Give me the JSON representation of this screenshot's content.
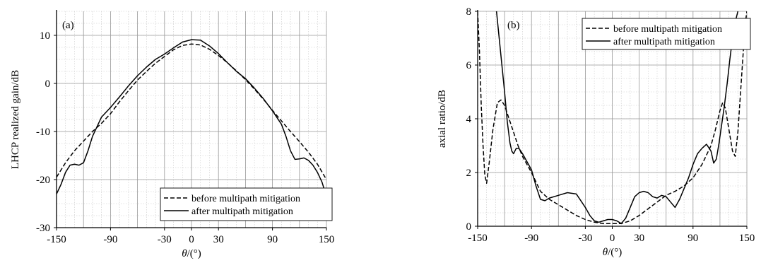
{
  "chart_data": [
    {
      "type": "line",
      "panel_label": "(a)",
      "xlabel_var": "θ",
      "xlabel_unit": "/(°)",
      "ylabel": "LHCP realized gain/dB",
      "xlim": [
        -150,
        150
      ],
      "ylim": [
        -30,
        15
      ],
      "xticks": [
        -150,
        -90,
        -30,
        0,
        30,
        90,
        150
      ],
      "yticks": [
        -30,
        -20,
        -10,
        0,
        10
      ],
      "grid": true,
      "legend_position": "bottom-right",
      "series": [
        {
          "name": "before multipath mitigation",
          "style": "dashed",
          "x": [
            -150,
            -140,
            -130,
            -120,
            -110,
            -100,
            -90,
            -80,
            -70,
            -60,
            -50,
            -40,
            -30,
            -20,
            -10,
            0,
            10,
            20,
            30,
            40,
            50,
            60,
            70,
            80,
            90,
            100,
            110,
            120,
            130,
            140,
            150
          ],
          "y": [
            -19.5,
            -16.5,
            -14.0,
            -12.0,
            -10.0,
            -8.3,
            -6.3,
            -3.8,
            -1.5,
            0.7,
            2.5,
            4.2,
            5.6,
            7.0,
            7.9,
            8.2,
            8.0,
            7.1,
            5.8,
            4.3,
            2.6,
            0.8,
            -1.2,
            -3.3,
            -5.6,
            -7.8,
            -10.0,
            -12.1,
            -14.3,
            -16.8,
            -20.0
          ]
        },
        {
          "name": "after multipath mitigation",
          "style": "solid",
          "x": [
            -150,
            -145,
            -140,
            -135,
            -130,
            -125,
            -120,
            -115,
            -110,
            -100,
            -90,
            -80,
            -70,
            -60,
            -50,
            -40,
            -30,
            -20,
            -10,
            0,
            10,
            20,
            30,
            40,
            50,
            60,
            70,
            80,
            90,
            100,
            105,
            110,
            115,
            120,
            125,
            130,
            135,
            140,
            145,
            150
          ],
          "y": [
            -23.0,
            -21.0,
            -18.5,
            -17.0,
            -16.8,
            -17.0,
            -16.5,
            -14.0,
            -11.0,
            -7.0,
            -5.0,
            -2.8,
            -0.5,
            1.6,
            3.4,
            5.0,
            6.1,
            7.4,
            8.6,
            9.1,
            9.0,
            7.8,
            6.2,
            4.3,
            2.5,
            1.0,
            -1.0,
            -3.2,
            -5.7,
            -8.5,
            -11.0,
            -14.0,
            -15.8,
            -15.7,
            -15.5,
            -16.0,
            -17.0,
            -18.5,
            -20.5,
            -23.5
          ]
        }
      ]
    },
    {
      "type": "line",
      "panel_label": "(b)",
      "xlabel_var": "θ",
      "xlabel_unit": "/(°)",
      "ylabel": "axial ratio/dB",
      "xlim": [
        -150,
        150
      ],
      "ylim": [
        0,
        8
      ],
      "xticks": [
        -150,
        -90,
        -30,
        0,
        30,
        90,
        150
      ],
      "yticks": [
        0,
        2,
        4,
        6,
        8
      ],
      "grid": true,
      "legend_position": "top-right",
      "series": [
        {
          "name": "before multipath mitigation",
          "style": "dashed",
          "x": [
            -150,
            -148,
            -146,
            -144,
            -142,
            -140,
            -137,
            -133,
            -128,
            -124,
            -120,
            -115,
            -110,
            -105,
            -100,
            -95,
            -90,
            -80,
            -70,
            -60,
            -50,
            -40,
            -30,
            -20,
            -10,
            0,
            10,
            20,
            30,
            40,
            50,
            60,
            70,
            80,
            90,
            100,
            110,
            115,
            120,
            123,
            126,
            130,
            134,
            137,
            140,
            144,
            148,
            150
          ],
          "y": [
            8.0,
            6.5,
            4.5,
            3.0,
            1.9,
            1.6,
            2.4,
            3.6,
            4.6,
            4.7,
            4.5,
            4.0,
            3.5,
            3.0,
            2.6,
            2.3,
            2.0,
            1.3,
            1.0,
            0.8,
            0.6,
            0.4,
            0.25,
            0.15,
            0.1,
            0.1,
            0.1,
            0.2,
            0.4,
            0.65,
            0.9,
            1.15,
            1.3,
            1.5,
            1.8,
            2.3,
            3.0,
            3.6,
            4.3,
            4.6,
            4.4,
            3.6,
            2.8,
            2.6,
            3.5,
            5.5,
            7.5,
            8.0
          ]
        },
        {
          "name": "after multipath mitigation",
          "style": "solid",
          "x": [
            -129,
            -126,
            -123,
            -120,
            -117,
            -114,
            -112,
            -110,
            -107,
            -104,
            -100,
            -95,
            -90,
            -85,
            -80,
            -75,
            -70,
            -60,
            -50,
            -40,
            -30,
            -25,
            -20,
            -15,
            -10,
            -5,
            0,
            5,
            10,
            15,
            20,
            25,
            30,
            35,
            40,
            45,
            50,
            55,
            60,
            65,
            70,
            75,
            80,
            85,
            90,
            95,
            100,
            105,
            110,
            113,
            116,
            119,
            122,
            125,
            128,
            131,
            134,
            137,
            140
          ],
          "y": [
            8.0,
            7.0,
            6.0,
            5.0,
            3.9,
            3.1,
            2.8,
            2.7,
            2.9,
            2.9,
            2.7,
            2.4,
            2.1,
            1.5,
            1.0,
            0.95,
            1.05,
            1.15,
            1.25,
            1.2,
            0.7,
            0.4,
            0.2,
            0.15,
            0.2,
            0.25,
            0.25,
            0.2,
            0.1,
            0.3,
            0.7,
            1.1,
            1.25,
            1.3,
            1.25,
            1.1,
            1.05,
            1.15,
            1.1,
            0.9,
            0.7,
            1.0,
            1.4,
            1.8,
            2.3,
            2.7,
            2.9,
            3.05,
            2.8,
            2.35,
            2.5,
            3.1,
            3.8,
            4.5,
            5.3,
            6.2,
            7.0,
            7.6,
            8.0
          ]
        }
      ]
    }
  ]
}
